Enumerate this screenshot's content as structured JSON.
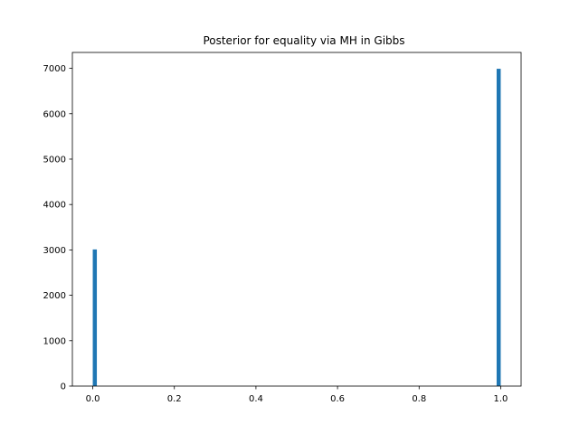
{
  "chart_data": {
    "type": "bar",
    "title": "Posterior for equality via MH in Gibbs",
    "xlabel": "",
    "ylabel": "",
    "xlim": [
      -0.05,
      1.05
    ],
    "ylim": [
      0,
      7350
    ],
    "xticks": [
      0.0,
      0.2,
      0.4,
      0.6,
      0.8,
      1.0
    ],
    "xtick_labels": [
      "0.0",
      "0.2",
      "0.4",
      "0.6",
      "0.8",
      "1.0"
    ],
    "yticks": [
      0,
      1000,
      2000,
      3000,
      4000,
      5000,
      6000,
      7000
    ],
    "ytick_labels": [
      "0",
      "1000",
      "2000",
      "3000",
      "4000",
      "5000",
      "6000",
      "7000"
    ],
    "bin_width": 0.01,
    "bars": [
      {
        "x_start": 0.0,
        "x_end": 0.01,
        "value": 3010
      },
      {
        "x_start": 0.99,
        "x_end": 1.0,
        "value": 6990
      }
    ],
    "bar_color": "#1f77b4",
    "grid": false,
    "legend": "none"
  }
}
